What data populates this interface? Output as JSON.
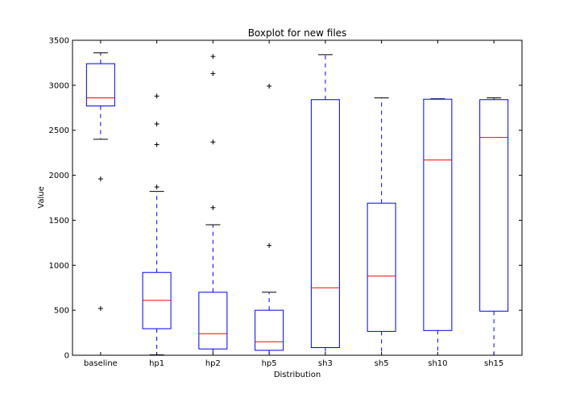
{
  "chart_data": {
    "type": "boxplot",
    "title": "Boxplot for new files",
    "xlabel": "Distribution",
    "ylabel": "Value",
    "ylim": [
      0,
      3500
    ],
    "yticks": [
      0,
      500,
      1000,
      1500,
      2000,
      2500,
      3000,
      3500
    ],
    "categories": [
      "baseline",
      "hp1",
      "hp2",
      "hp5",
      "sh3",
      "sh5",
      "sh10",
      "sh15"
    ],
    "boxes": [
      {
        "name": "baseline",
        "whisker_low": 2400,
        "q1": 2770,
        "median": 2860,
        "q3": 3240,
        "whisker_high": 3360,
        "outliers": [
          1960,
          520
        ]
      },
      {
        "name": "hp1",
        "whisker_low": 5,
        "q1": 295,
        "median": 610,
        "q3": 920,
        "whisker_high": 1820,
        "outliers": [
          2880,
          2570,
          2340,
          1870
        ]
      },
      {
        "name": "hp2",
        "whisker_low": 0,
        "q1": 70,
        "median": 240,
        "q3": 700,
        "whisker_high": 1450,
        "outliers": [
          3320,
          3130,
          2370,
          1640
        ]
      },
      {
        "name": "hp5",
        "whisker_low": 0,
        "q1": 55,
        "median": 150,
        "q3": 500,
        "whisker_high": 700,
        "outliers": [
          2990,
          1220
        ]
      },
      {
        "name": "sh3",
        "whisker_low": 0,
        "q1": 85,
        "median": 750,
        "q3": 2840,
        "whisker_high": 3340,
        "outliers": []
      },
      {
        "name": "sh5",
        "whisker_low": 0,
        "q1": 265,
        "median": 880,
        "q3": 1690,
        "whisker_high": 2860,
        "outliers": []
      },
      {
        "name": "sh10",
        "whisker_low": 0,
        "q1": 275,
        "median": 2170,
        "q3": 2845,
        "whisker_high": 2850,
        "outliers": []
      },
      {
        "name": "sh15",
        "whisker_low": 0,
        "q1": 490,
        "median": 2420,
        "q3": 2840,
        "whisker_high": 2860,
        "outliers": []
      }
    ],
    "colors": {
      "box": "#0000ff",
      "median": "#ff0000",
      "whisker": "#0000ff",
      "cap": "#000000",
      "flier": "#000000"
    },
    "grid": false,
    "legend": "none"
  }
}
